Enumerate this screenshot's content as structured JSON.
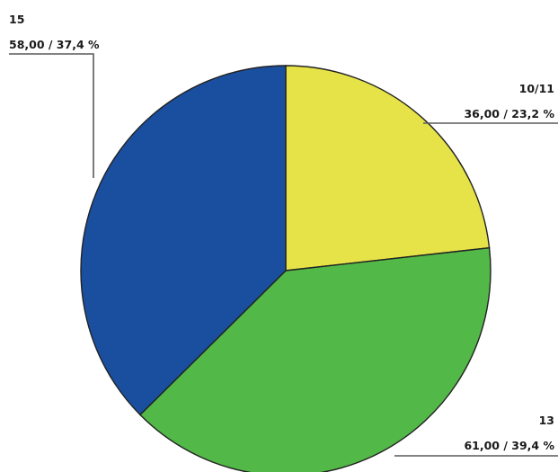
{
  "chart_data": {
    "type": "pie",
    "title": "",
    "slices": [
      {
        "category": "10/11",
        "value": 36.0,
        "percent": 23.2,
        "value_label": "36,00 / 23,2 %",
        "color": "#e6e349"
      },
      {
        "category": "13",
        "value": 61.0,
        "percent": 39.4,
        "value_label": "61,00 / 39,4 %",
        "color": "#52b847"
      },
      {
        "category": "15",
        "value": 58.0,
        "percent": 37.4,
        "value_label": "58,00 / 37,4 %",
        "color": "#1a4fa0"
      }
    ],
    "start_angle": "12 o'clock",
    "direction": "clockwise",
    "legend": "none"
  }
}
